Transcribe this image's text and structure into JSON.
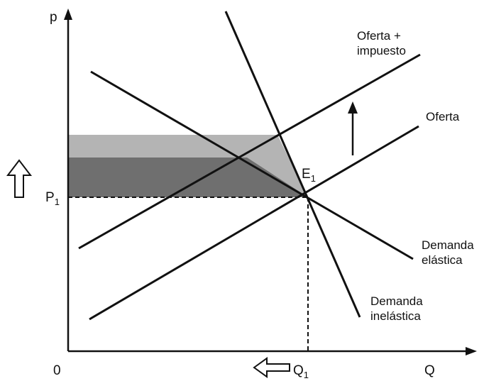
{
  "axes": {
    "y_label": "p",
    "x_label": "Q",
    "origin_label": "0"
  },
  "points": {
    "price_label": "P",
    "price_sub": "1",
    "quantity_label": "Q",
    "quantity_sub": "1",
    "equilibrium_label": "E",
    "equilibrium_sub": "1"
  },
  "curves": {
    "supply_tax_line1": "Oferta +",
    "supply_tax_line2": "impuesto",
    "supply": "Oferta",
    "demand_elastic_line1": "Demanda",
    "demand_elastic_line2": "elástica",
    "demand_inelastic_line1": "Demanda",
    "demand_inelastic_line2": "inelástica"
  },
  "colors": {
    "light_gray_area": "#b0b0b0",
    "dark_gray_area": "#7a7a7a",
    "lines": "#111111"
  },
  "icons": {
    "price_up": "hollow-up-arrow-icon",
    "quantity_down": "hollow-left-arrow-icon",
    "shift_up": "up-arrow-icon"
  }
}
